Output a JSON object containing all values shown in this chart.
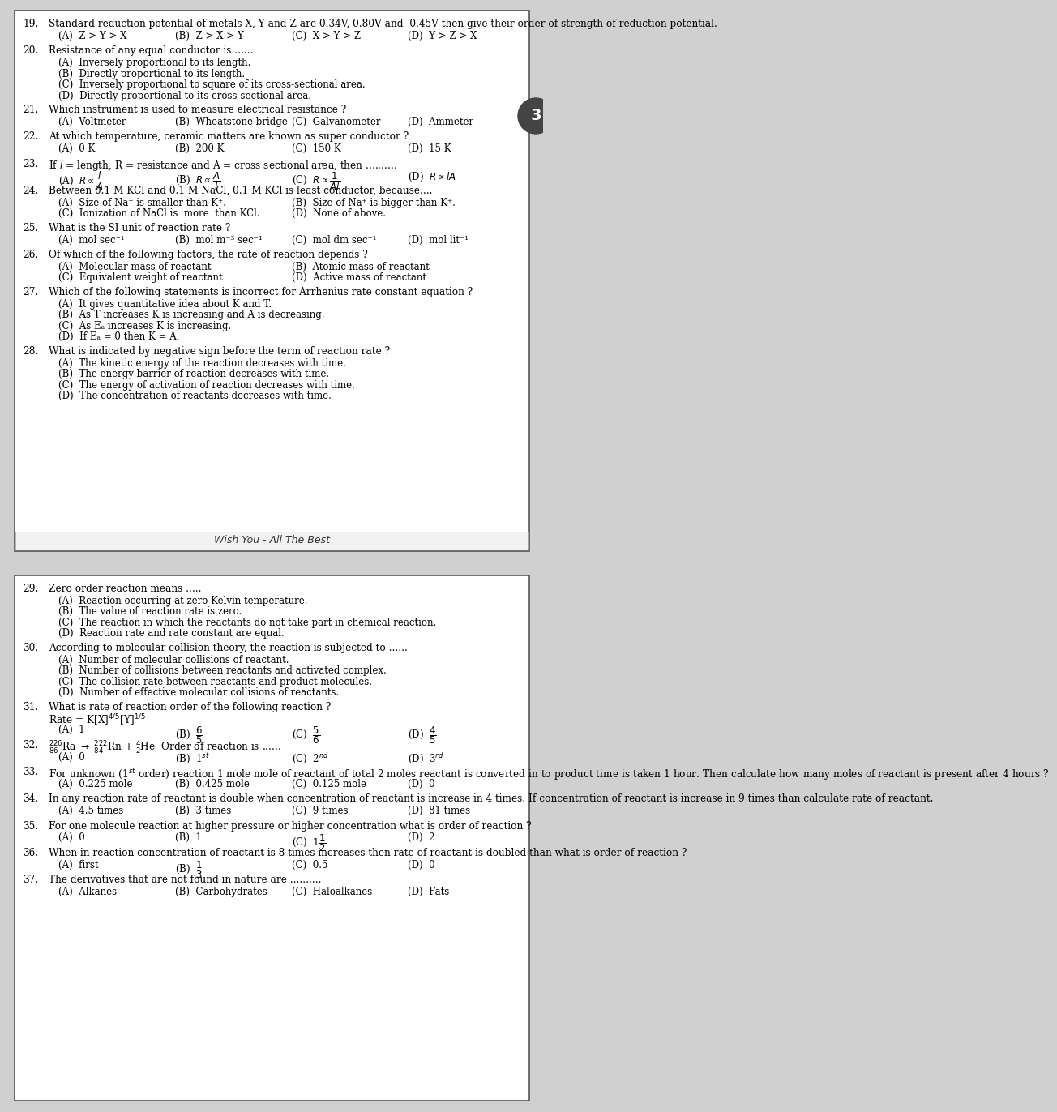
{
  "bg_color": "#d0d0d0",
  "box1_face": "#ffffff",
  "box2_face": "#ffffff",
  "border_color": "#666666",
  "tab_color": "#888888",
  "wish_text": "Wish You - All The Best",
  "section1": [
    {
      "num": "19.",
      "q": "Standard reduction potential of metals X, Y and Z are 0.34V, 0.80V and -0.45V then give their order of strength of reduction potential.",
      "opts_inline": true,
      "opts": [
        "(A)  Z > Y > X",
        "(B)  Z > X > Y",
        "(C)  X > Y > Z",
        "(D)  Y > Z > X"
      ]
    },
    {
      "num": "20.",
      "q": "Resistance of any equal conductor is ......",
      "opts_inline": false,
      "opts": [
        "(A)  Inversely proportional to its length.",
        "(B)  Directly proportional to its length.",
        "(C)  Inversely proportional to square of its cross-sectional area.",
        "(D)  Directly proportional to its cross-sectional area."
      ]
    },
    {
      "num": "21.",
      "q": "Which instrument is used to measure electrical resistance ?",
      "opts_inline": true,
      "opts": [
        "(A)  Voltmeter",
        "(B)  Wheatstone bridge",
        "(C)  Galvanometer",
        "(D)  Ammeter"
      ]
    },
    {
      "num": "22.",
      "q": "At which temperature, ceramic matters are known as super conductor ?",
      "opts_inline": true,
      "opts": [
        "(A)  0 K",
        "(B)  200 K",
        "(C)  150 K",
        "(D)  15 K"
      ]
    },
    {
      "num": "23.",
      "q": "If $l$ = length, R = resistance and A = cross sectional area, then ..........",
      "opts_inline": true,
      "opts_math": true,
      "opts": [
        "(A)  $R\\propto \\dfrac{l}{A}$",
        "(B)  $R\\propto \\dfrac{A}{l}$",
        "(C)  $R\\propto \\dfrac{1}{Al}$",
        "(D)  $R\\propto lA$"
      ]
    },
    {
      "num": "24.",
      "q": "Between 0.1 M KCl and 0.1 M NaCl, 0.1 M KCl is least conductor, because....",
      "opts_inline": true,
      "opts_2col": true,
      "opts": [
        "(A)  Size of Na⁺ is smaller than K⁺.",
        "(B)  Size of Na⁺ is bigger than K⁺.",
        "(C)  Ionization of NaCl is  more  than KCl.",
        "(D)  None of above."
      ]
    },
    {
      "num": "25.",
      "q": "What is the SI unit of reaction rate ?",
      "opts_inline": true,
      "opts": [
        "(A)  mol sec⁻¹",
        "(B)  mol m⁻³ sec⁻¹",
        "(C)  mol dm sec⁻¹",
        "(D)  mol lit⁻¹"
      ]
    },
    {
      "num": "26.",
      "q": "Of which of the following factors, the rate of reaction depends ?",
      "opts_inline": true,
      "opts_2col": true,
      "opts": [
        "(A)  Molecular mass of reactant",
        "(B)  Atomic mass of reactant",
        "(C)  Equivalent weight of reactant",
        "(D)  Active mass of reactant"
      ]
    },
    {
      "num": "27.",
      "q": "Which of the following statements is incorrect for Arrhenius rate constant equation ?",
      "opts_inline": false,
      "opts": [
        "(A)  It gives quantitative idea about K and T.",
        "(B)  As T increases K is increasing and A is decreasing.",
        "(C)  As Eₐ increases K is increasing.",
        "(D)  If Eₐ = 0 then K = A."
      ]
    },
    {
      "num": "28.",
      "q": "What is indicated by negative sign before the term of reaction rate ?",
      "opts_inline": false,
      "opts": [
        "(A)  The kinetic energy of the reaction decreases with time.",
        "(B)  The energy barrier of reaction decreases with time.",
        "(C)  The energy of activation of reaction decreases with time.",
        "(D)  The concentration of reactants decreases with time."
      ]
    }
  ],
  "section2": [
    {
      "num": "29.",
      "q": "Zero order reaction means .....",
      "opts_inline": false,
      "opts": [
        "(A)  Reaction occurring at zero Kelvin temperature.",
        "(B)  The value of reaction rate is zero.",
        "(C)  The reaction in which the reactants do not take part in chemical reaction.",
        "(D)  Reaction rate and rate constant are equal."
      ]
    },
    {
      "num": "30.",
      "q": "According to molecular collision theory, the reaction is subjected to ......",
      "opts_inline": false,
      "opts": [
        "(A)  Number of molecular collisions of reactant.",
        "(B)  Number of collisions between reactants and activated complex.",
        "(C)  The collision rate between reactants and product molecules.",
        "(D)  Number of effective molecular collisions of reactants."
      ]
    },
    {
      "num": "31.",
      "q": "What is rate of reaction order of the following reaction ?\nRate = K[X]$^{4/5}$[Y]$^{1/5}$",
      "q_has_math": true,
      "q_extra": "Rate = K[X]$^{4/5}$[Y]$^{1/5}$",
      "opts_inline": true,
      "opts_math": true,
      "opts": [
        "(A)  1",
        "(B)  $\\dfrac{6}{5}$",
        "(C)  $\\dfrac{5}{6}$",
        "(D)  $\\dfrac{4}{5}$"
      ]
    },
    {
      "num": "32.",
      "q": "$^{226}_{86}$Ra $\\rightarrow$ $^{222}_{84}$Rn + $^{4}_{2}$He  Order of reaction is ......",
      "q_math": true,
      "opts_inline": true,
      "opts": [
        "(A)  0",
        "(B)  1$^{st}$",
        "(C)  2$^{nd}$",
        "(D)  3$^{rd}$"
      ],
      "opts_math": true
    },
    {
      "num": "33.",
      "q": "For unknown (1$^{st}$ order) reaction 1 mole mole of reactant of total 2 moles reactant is converted in to product time is taken 1 hour. Then calculate how many moles of reactant is present after 4 hours ?",
      "q_math": true,
      "opts_inline": true,
      "opts": [
        "(A)  0.225 mole",
        "(B)  0.425 mole",
        "(C)  0.125 mole",
        "(D)  0"
      ]
    },
    {
      "num": "34.",
      "q": "In any reaction rate of reactant is double when concentration of reactant is increase in 4 times. If concentration of reactant is increase in 9 times than calculate rate of reactant.",
      "opts_inline": true,
      "opts": [
        "(A)  4.5 times",
        "(B)  3 times",
        "(C)  9 times",
        "(D)  81 times"
      ]
    },
    {
      "num": "35.",
      "q": "For one molecule reaction at higher pressure or higher concentration what is order of reaction ?",
      "opts_inline": true,
      "opts_math": true,
      "opts": [
        "(A)  0",
        "(B)  1",
        "(C)  $1\\dfrac{1}{2}$",
        "(D)  2"
      ]
    },
    {
      "num": "36.",
      "q": "When in reaction concentration of reactant is 8 times increases then rate of reactant is doubled than what is order of reaction ?",
      "opts_inline": true,
      "opts_math": true,
      "opts": [
        "(A)  first",
        "(B)  $\\dfrac{1}{3}$",
        "(C)  0.5",
        "(D)  0"
      ]
    },
    {
      "num": "37.",
      "q": "The derivatives that are not found in nature are ..........",
      "opts_inline": true,
      "opts": [
        "(A)  Alkanes",
        "(B)  Carbohydrates",
        "(C)  Haloalkanes",
        "(D)  Fats"
      ]
    }
  ]
}
